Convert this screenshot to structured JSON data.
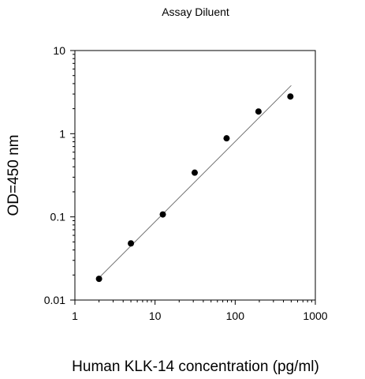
{
  "chart_data": {
    "type": "scatter",
    "title": "Assay Diluent",
    "xlabel": "Human KLK-14 concentration (pg/ml)",
    "ylabel": "OD=450 nm",
    "x_scale": "log",
    "y_scale": "log",
    "xlim": [
      1,
      1000
    ],
    "ylim": [
      0.01,
      10
    ],
    "x_ticks": [
      1,
      10,
      100,
      1000
    ],
    "x_tick_labels": [
      "1",
      "10",
      "100",
      "1000"
    ],
    "y_ticks": [
      0.01,
      0.1,
      1,
      10
    ],
    "y_tick_labels": [
      "0.01",
      "0.1",
      "1",
      "10"
    ],
    "grid": false,
    "legend": "none",
    "series": [
      {
        "x": [
          2,
          5,
          12.5,
          31.25,
          78.125,
          195.3,
          488.3
        ],
        "y": [
          0.018,
          0.048,
          0.107,
          0.34,
          0.88,
          1.85,
          2.8
        ]
      }
    ],
    "fit_line": {
      "x": [
        2,
        500
      ],
      "y": [
        0.0185,
        3.8
      ]
    },
    "colors": {
      "points": "#000000",
      "line": "#555555",
      "axes": "#000000"
    }
  }
}
